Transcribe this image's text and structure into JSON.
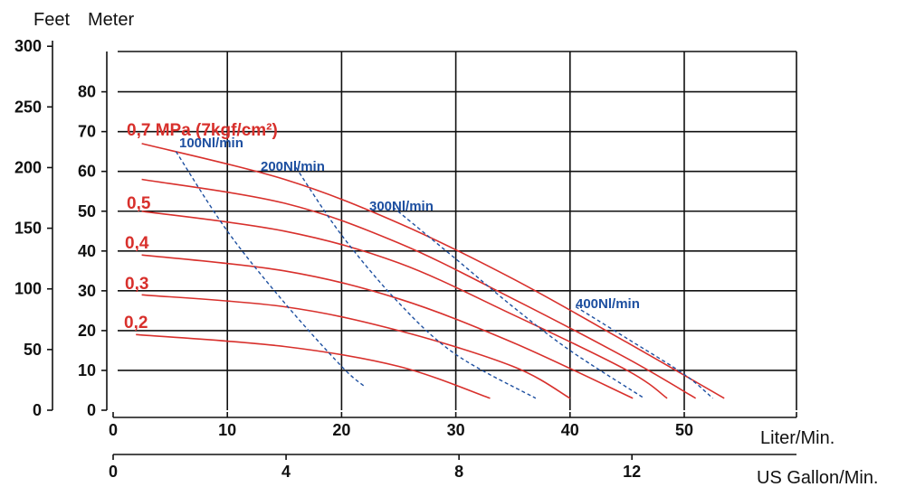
{
  "chart_data": {
    "type": "line",
    "axis_labels": {
      "feet": "Feet",
      "meter": "Meter",
      "liter": "Liter/Min.",
      "gallon": "US Gallon/Min."
    },
    "feet_ticks": [
      "0",
      "50",
      "100",
      "150",
      "200",
      "250",
      "300"
    ],
    "meter_ticks": [
      "0",
      "10",
      "20",
      "30",
      "40",
      "50",
      "60",
      "70",
      "80"
    ],
    "liter_ticks": [
      "0",
      "10",
      "20",
      "30",
      "40",
      "50"
    ],
    "gallon_ticks": [
      "0",
      "4",
      "8",
      "12"
    ],
    "xlim": [
      0,
      60
    ],
    "ylim": [
      0,
      90
    ],
    "grid": true,
    "colors": {
      "pressure": "#d8302c",
      "air": "#1d4fa0",
      "grid": "#111111"
    },
    "pressure_series": [
      {
        "name": "0,7 MPa (7kgf/cm²)",
        "x": [
          2.5,
          15,
          25,
          35,
          45,
          53.5
        ],
        "y": [
          67,
          58,
          47,
          33,
          17,
          3
        ]
      },
      {
        "name": "0,5",
        "x": [
          2.5,
          15,
          25,
          35,
          45,
          51
        ],
        "y": [
          58,
          52,
          42,
          28,
          13,
          3
        ]
      },
      {
        "name": "",
        "x": [
          2.5,
          15,
          25,
          35,
          45,
          48.5
        ],
        "y": [
          50,
          45,
          37,
          24,
          10,
          3
        ]
      },
      {
        "name": "0,4",
        "x": [
          2.5,
          15,
          25,
          35,
          45.5
        ],
        "y": [
          39,
          35,
          28,
          17,
          3
        ]
      },
      {
        "name": "0,3",
        "x": [
          2.5,
          15,
          25,
          35,
          40
        ],
        "y": [
          29,
          26,
          20,
          11,
          3
        ]
      },
      {
        "name": "0,2",
        "x": [
          2,
          15,
          25,
          33
        ],
        "y": [
          19,
          16,
          11,
          3
        ]
      }
    ],
    "air_series": [
      {
        "name": "100Nl/min",
        "x": [
          5.5,
          10,
          15,
          20,
          22
        ],
        "y": [
          65,
          45,
          27,
          11,
          6
        ]
      },
      {
        "name": "200Nl/min",
        "x": [
          16,
          20,
          25,
          30,
          37
        ],
        "y": [
          61,
          44,
          27,
          14,
          3
        ]
      },
      {
        "name": "300Nl/min",
        "x": [
          24.5,
          30,
          35,
          40,
          46.5
        ],
        "y": [
          51,
          38,
          26,
          15,
          3
        ]
      },
      {
        "name": "400Nl/min",
        "x": [
          40.5,
          45,
          50,
          52.5
        ],
        "y": [
          26,
          18,
          9,
          3
        ]
      }
    ]
  }
}
